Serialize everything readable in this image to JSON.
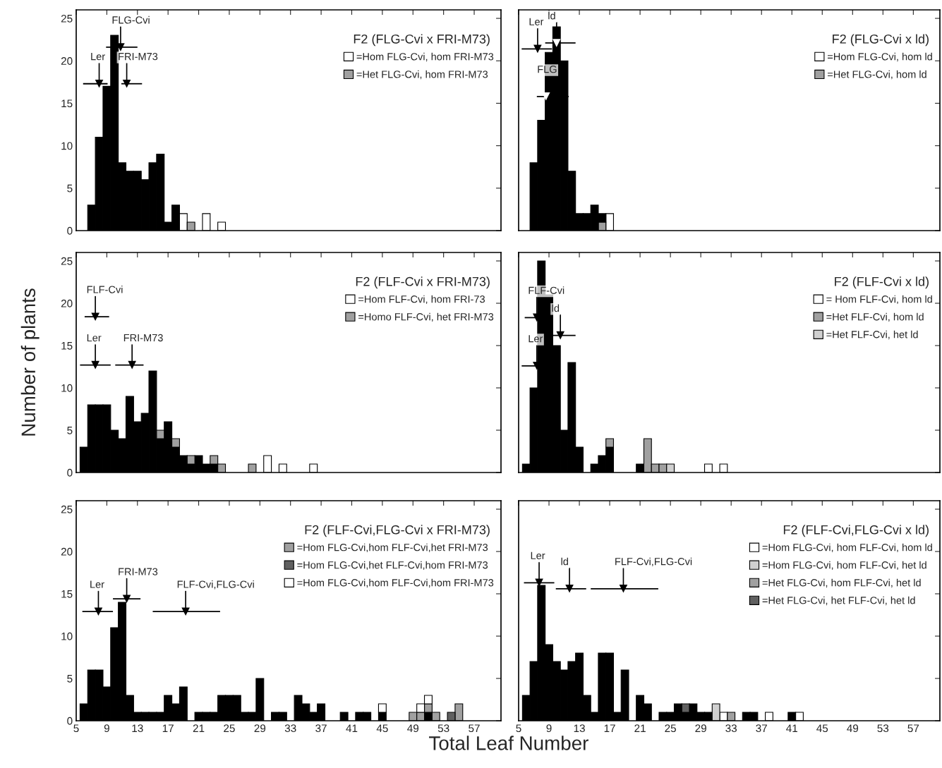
{
  "chart_data": [
    {
      "type": "bar",
      "title": "F2 (FLG-Cvi x FRI-M73)",
      "stacked": true,
      "legend": "top right",
      "tick_labels": "y",
      "x": [
        7,
        8,
        9,
        10,
        11,
        12,
        13,
        14,
        15,
        16,
        17,
        18,
        19,
        20,
        21,
        22,
        23,
        24
      ],
      "xlim": [
        5,
        60.5
      ],
      "xticks": [
        5,
        9,
        13,
        17,
        21,
        25,
        29,
        33,
        37,
        41,
        45,
        49,
        53,
        57
      ],
      "ylim": [
        0,
        26
      ],
      "yticks": [
        0,
        5,
        10,
        15,
        20,
        25
      ],
      "series": [
        {
          "name": "=Hom FLG-Cvi, hom FRI-M73",
          "color": "#ffffff",
          "values": [
            null,
            null,
            null,
            null,
            null,
            null,
            null,
            null,
            null,
            null,
            null,
            null,
            2,
            null,
            null,
            2,
            null,
            1
          ]
        },
        {
          "name": "=Het FLG-Cvi, hom FRI-M73",
          "color": "#a0a0a0",
          "values": [
            null,
            null,
            null,
            null,
            null,
            null,
            null,
            null,
            null,
            null,
            null,
            null,
            null,
            1,
            null,
            null,
            null,
            null
          ]
        },
        {
          "color": "#000000",
          "values": [
            3,
            11,
            17,
            23,
            8,
            7,
            7,
            6,
            8,
            9,
            1,
            3,
            null,
            null,
            null,
            null,
            null,
            null
          ]
        },
        {
          "type": "line",
          "color": "#000000",
          "x": [
            5.9,
            9.1
          ],
          "values": [
            17.3,
            17.3
          ]
        },
        {
          "type": "line",
          "color": "#000000",
          "x": [
            10.9,
            13.6
          ],
          "values": [
            17.3,
            17.3
          ]
        },
        {
          "type": "line",
          "color": "#000000",
          "x": [
            8.9,
            13.0
          ],
          "values": [
            21.6,
            21.6
          ]
        },
        {
          "type": "scatter",
          "marker": "triangle",
          "color": "#000000",
          "x": [
            8,
            11.6,
            10.8
          ],
          "values": [
            17.3,
            17.3,
            21.6
          ]
        }
      ],
      "annotations": [
        {
          "text": "Ler",
          "x": 8,
          "y": 17.3
        },
        {
          "text": "FRI-M73",
          "x": 11.6,
          "y": 17.3
        },
        {
          "text": "FLG-Cvi",
          "x": 10.8,
          "y": 21.6
        }
      ]
    },
    {
      "type": "bar",
      "title": "F2 (FLG-Cvi x ld)",
      "stacked": true,
      "legend": "top right",
      "tick_labels": false,
      "x": [
        7,
        8,
        9,
        10,
        11,
        12,
        13,
        14,
        15,
        16,
        17
      ],
      "xlim": [
        5,
        60.5
      ],
      "xticks": [
        5,
        9,
        13,
        17,
        21,
        25,
        29,
        33,
        37,
        41,
        45,
        49,
        53,
        57
      ],
      "ylim": [
        0,
        26
      ],
      "yticks": [
        0,
        5,
        10,
        15,
        20,
        25
      ],
      "series": [
        {
          "name": "=Hom FLG-Cvi, hom ld",
          "color": "#ffffff",
          "values": [
            null,
            null,
            null,
            null,
            null,
            null,
            null,
            null,
            null,
            null,
            2
          ]
        },
        {
          "name": "=Het FLG-Cvi, hom ld",
          "color": "#a0a0a0",
          "values": [
            null,
            null,
            null,
            null,
            null,
            null,
            null,
            null,
            null,
            1,
            null
          ]
        },
        {
          "color": "#000000",
          "values": [
            8,
            13,
            21,
            24,
            20,
            7,
            2,
            2,
            3,
            1,
            null
          ]
        },
        {
          "type": "line",
          "color": "#000000",
          "x": [
            5.4,
            9.4
          ],
          "values": [
            21.4,
            21.4
          ]
        },
        {
          "type": "line",
          "color": "#000000",
          "x": [
            8.5,
            12.5
          ],
          "values": [
            22.1,
            22.1
          ]
        },
        {
          "type": "line",
          "color": "#000000",
          "x": [
            7.4,
            11.6
          ],
          "values": [
            15.8,
            15.8
          ]
        },
        {
          "type": "scatter",
          "marker": "triangle",
          "color": "#000000",
          "x": [
            7.5
          ],
          "values": [
            21.4
          ]
        },
        {
          "type": "scatter",
          "marker": "triangle",
          "color": "#ffffff",
          "x": [
            10.0,
            8.6
          ],
          "values": [
            22.1,
            15.8
          ]
        }
      ],
      "annotations": [
        {
          "text": "Ler",
          "x": 7.5,
          "y": 21.4
        },
        {
          "text": "ld",
          "x": 10.0,
          "y": 22.1
        },
        {
          "text": "FLG",
          "x": 8.6,
          "y": 15.8
        }
      ]
    },
    {
      "type": "bar",
      "title": "F2 (FLF-Cvi x FRI-M73)",
      "stacked": true,
      "legend": "top right",
      "tick_labels": "y",
      "ylabel": "Number of plants",
      "x": [
        6,
        7,
        8,
        9,
        10,
        11,
        12,
        13,
        14,
        15,
        16,
        17,
        18,
        19,
        20,
        21,
        22,
        23,
        24,
        25,
        26,
        27,
        28,
        29,
        30,
        31,
        32,
        33,
        34,
        35,
        36
      ],
      "xlim": [
        5,
        60.5
      ],
      "xticks": [
        5,
        9,
        13,
        17,
        21,
        25,
        29,
        33,
        37,
        41,
        45,
        49,
        53,
        57
      ],
      "ylim": [
        0,
        26
      ],
      "yticks": [
        0,
        5,
        10,
        15,
        20,
        25
      ],
      "series": [
        {
          "color": "#000000",
          "values": [
            3,
            8,
            8,
            8,
            5,
            4,
            9,
            6,
            7,
            12,
            4,
            6,
            3,
            2,
            1,
            2,
            1,
            1,
            null,
            null,
            null,
            null,
            null,
            null,
            null,
            null,
            null,
            null,
            null,
            null,
            null
          ]
        },
        {
          "name": "=Hom FLF-Cvi, hom FRI-73",
          "color": "#ffffff",
          "values": [
            null,
            null,
            null,
            null,
            null,
            null,
            null,
            null,
            null,
            null,
            null,
            null,
            null,
            null,
            null,
            null,
            null,
            null,
            null,
            null,
            null,
            null,
            null,
            null,
            2,
            null,
            1,
            null,
            null,
            null,
            1
          ]
        },
        {
          "name": "=Homo FLF-Cvi, het FRI-M73",
          "color": "#a0a0a0",
          "values": [
            null,
            null,
            null,
            null,
            null,
            null,
            null,
            null,
            null,
            null,
            1,
            null,
            1,
            null,
            1,
            null,
            null,
            1,
            1,
            null,
            null,
            null,
            1,
            null,
            null,
            null,
            null,
            null,
            null,
            null,
            null
          ]
        },
        {
          "type": "line",
          "color": "#000000",
          "x": [
            6.1,
            9.3
          ],
          "values": [
            18.4,
            18.4
          ]
        },
        {
          "type": "line",
          "color": "#000000",
          "x": [
            5.5,
            9.5
          ],
          "values": [
            12.7,
            12.7
          ]
        },
        {
          "type": "line",
          "color": "#000000",
          "x": [
            10.1,
            13.8
          ],
          "values": [
            12.7,
            12.7
          ]
        },
        {
          "type": "scatter",
          "marker": "triangle",
          "color": "#000000",
          "x": [
            7.5,
            7.5,
            12.3
          ],
          "values": [
            18.4,
            12.7,
            12.7
          ]
        }
      ],
      "annotations": [
        {
          "text": "FLF-Cvi",
          "x": 7.5,
          "y": 18.4
        },
        {
          "text": "Ler",
          "x": 7.5,
          "y": 12.7
        },
        {
          "text": "FRI-M73",
          "x": 12.3,
          "y": 12.7
        }
      ]
    },
    {
      "type": "bar",
      "title": "F2 (FLF-Cvi x ld)",
      "stacked": true,
      "legend": "top right",
      "tick_labels": false,
      "x": [
        6,
        7,
        8,
        9,
        10,
        11,
        12,
        13,
        14,
        15,
        16,
        17,
        18,
        19,
        20,
        21,
        22,
        23,
        24,
        25,
        26,
        27,
        28,
        29,
        30,
        31,
        32
      ],
      "xlim": [
        5,
        60.5
      ],
      "xticks": [
        5,
        9,
        13,
        17,
        21,
        25,
        29,
        33,
        37,
        41,
        45,
        49,
        53,
        57
      ],
      "ylim": [
        0,
        26
      ],
      "yticks": [
        0,
        5,
        10,
        15,
        20,
        25
      ],
      "series": [
        {
          "color": "#000000",
          "values": [
            1,
            10,
            25,
            21,
            15,
            5,
            13,
            3,
            null,
            1,
            2,
            3,
            null,
            null,
            null,
            1,
            null,
            null,
            null,
            null,
            null,
            null,
            null,
            null,
            null,
            null,
            null
          ]
        },
        {
          "name": "= Hom FLF-Cvi, hom ld",
          "color": "#ffffff",
          "values": [
            null,
            null,
            null,
            null,
            null,
            null,
            null,
            null,
            null,
            null,
            null,
            null,
            null,
            null,
            null,
            null,
            null,
            null,
            null,
            null,
            null,
            null,
            null,
            null,
            1,
            null,
            1
          ]
        },
        {
          "name": "=Het FLF-Cvi, hom ld",
          "color": "#a0a0a0",
          "values": [
            null,
            null,
            null,
            null,
            null,
            null,
            null,
            null,
            null,
            null,
            null,
            1,
            null,
            null,
            null,
            null,
            4,
            1,
            1,
            null,
            null,
            null,
            null,
            null,
            null,
            null,
            null
          ]
        },
        {
          "name": "=Het FLF-Cvi, het ld",
          "color": "#d0d0d0",
          "values": [
            null,
            null,
            null,
            null,
            null,
            null,
            null,
            null,
            null,
            null,
            null,
            null,
            null,
            null,
            null,
            null,
            null,
            null,
            null,
            1,
            null,
            null,
            null,
            null,
            null,
            null,
            null
          ]
        },
        {
          "type": "line",
          "color": "#000000",
          "x": [
            5.8,
            7.5
          ],
          "values": [
            18.3,
            18.3
          ]
        },
        {
          "type": "line",
          "color": "#000000",
          "x": [
            8.5,
            12.5
          ],
          "values": [
            16.2,
            16.2
          ]
        },
        {
          "type": "line",
          "color": "#000000",
          "x": [
            5.4,
            7.5
          ],
          "values": [
            12.6,
            12.6
          ]
        },
        {
          "type": "scatter",
          "marker": "triangle",
          "color": "#000000",
          "x": [
            7.4,
            10.5,
            7.4
          ],
          "values": [
            18.3,
            16.2,
            12.6
          ]
        }
      ],
      "annotations": [
        {
          "text": "FLF-Cvi",
          "x": 7.4,
          "y": 18.3
        },
        {
          "text": "ld",
          "x": 10.5,
          "y": 16.2
        },
        {
          "text": "Ler",
          "x": 7.4,
          "y": 12.6
        }
      ]
    },
    {
      "type": "bar",
      "title": "F2 (FLF-Cvi,FLG-Cvi x FRI-M73)",
      "stacked": true,
      "legend": "top right",
      "xlabel": "Total Leaf Number",
      "x": [
        6,
        7,
        8,
        9,
        10,
        11,
        12,
        13,
        14,
        15,
        16,
        17,
        18,
        19,
        20,
        21,
        22,
        23,
        24,
        25,
        26,
        27,
        28,
        29,
        30,
        31,
        32,
        33,
        34,
        35,
        36,
        37,
        38,
        39,
        40,
        41,
        42,
        43,
        44,
        45,
        46,
        47,
        48,
        49,
        50,
        51,
        52,
        53,
        54,
        55
      ],
      "xlim": [
        5,
        60.5
      ],
      "xticks": [
        5,
        9,
        13,
        17,
        21,
        25,
        29,
        33,
        37,
        41,
        45,
        49,
        53,
        57
      ],
      "ylim": [
        0,
        26
      ],
      "yticks": [
        0,
        5,
        10,
        15,
        20,
        25
      ],
      "series": [
        {
          "color": "#000000",
          "values": [
            2,
            6,
            6,
            4,
            11,
            14,
            3,
            1,
            1,
            1,
            1,
            3,
            2,
            4,
            null,
            1,
            1,
            1,
            3,
            3,
            3,
            1,
            1,
            5,
            null,
            1,
            1,
            null,
            3,
            2,
            1,
            2,
            null,
            null,
            1,
            null,
            1,
            1,
            null,
            1,
            null,
            null,
            null,
            null,
            null,
            1,
            null,
            null,
            null,
            null
          ]
        },
        {
          "name": "=Hom FLG-Cvi,hom FLF-Cvi,het FRI-M73",
          "color": "#a0a0a0",
          "values": [
            null,
            null,
            null,
            null,
            null,
            null,
            null,
            null,
            null,
            null,
            null,
            null,
            null,
            null,
            null,
            null,
            null,
            null,
            null,
            null,
            null,
            null,
            null,
            null,
            null,
            null,
            null,
            null,
            null,
            null,
            null,
            null,
            null,
            null,
            null,
            null,
            null,
            null,
            null,
            null,
            null,
            null,
            null,
            1,
            1,
            1,
            1,
            null,
            null,
            2
          ]
        },
        {
          "name": "=Hom FLG-Cvi,het FLF-Cvi,hom FRI-M73",
          "color": "#606060",
          "values": [
            null,
            null,
            null,
            null,
            null,
            null,
            null,
            null,
            null,
            null,
            null,
            null,
            null,
            null,
            null,
            null,
            null,
            null,
            null,
            null,
            null,
            null,
            null,
            null,
            null,
            null,
            null,
            null,
            null,
            null,
            null,
            null,
            null,
            null,
            null,
            null,
            null,
            null,
            null,
            null,
            null,
            null,
            null,
            null,
            null,
            null,
            null,
            null,
            1,
            null
          ]
        },
        {
          "name": "=Hom FLG-Cvi,hom FLF-Cvi,hom FRI-M73",
          "color": "#ffffff",
          "values": [
            null,
            null,
            null,
            null,
            null,
            null,
            null,
            null,
            null,
            null,
            null,
            null,
            null,
            null,
            null,
            null,
            null,
            null,
            null,
            null,
            null,
            null,
            null,
            null,
            null,
            null,
            null,
            null,
            null,
            null,
            null,
            null,
            null,
            null,
            null,
            null,
            null,
            null,
            null,
            1,
            null,
            null,
            null,
            null,
            1,
            1,
            null,
            null,
            null,
            null
          ]
        },
        {
          "type": "line",
          "color": "#000000",
          "x": [
            5.8,
            9.8
          ],
          "values": [
            12.9,
            12.9
          ]
        },
        {
          "type": "line",
          "color": "#000000",
          "x": [
            9.8,
            13.4
          ],
          "values": [
            14.4,
            14.4
          ]
        },
        {
          "type": "line",
          "color": "#000000",
          "x": [
            15.0,
            23.8
          ],
          "values": [
            12.9,
            12.9
          ]
        },
        {
          "type": "scatter",
          "marker": "triangle",
          "color": "#000000",
          "x": [
            7.9,
            11.6,
            19.3
          ],
          "values": [
            12.9,
            14.4,
            12.9
          ]
        }
      ],
      "annotations": [
        {
          "text": "Ler",
          "x": 7.9,
          "y": 12.9
        },
        {
          "text": "FRI-M73",
          "x": 11.6,
          "y": 14.4
        },
        {
          "text": "FLF-Cvi,FLG-Cvi",
          "x": 19.3,
          "y": 12.9
        }
      ]
    },
    {
      "type": "bar",
      "title": "F2 (FLF-Cvi,FLG-Cvi x ld)",
      "stacked": true,
      "legend": "top right",
      "tick_labels": "x",
      "x": [
        6,
        7,
        8,
        9,
        10,
        11,
        12,
        13,
        14,
        15,
        16,
        17,
        18,
        19,
        20,
        21,
        22,
        23,
        24,
        25,
        26,
        27,
        28,
        29,
        30,
        31,
        32,
        33,
        34,
        35,
        36,
        37,
        38,
        39,
        40,
        41,
        42
      ],
      "xlim": [
        5,
        60.5
      ],
      "xticks": [
        5,
        9,
        13,
        17,
        21,
        25,
        29,
        33,
        37,
        41,
        45,
        49,
        53,
        57
      ],
      "ylim": [
        0,
        26
      ],
      "yticks": [
        0,
        5,
        10,
        15,
        20,
        25
      ],
      "series": [
        {
          "color": "#000000",
          "values": [
            3,
            7,
            16,
            9,
            7,
            6,
            7,
            8,
            3,
            1,
            8,
            8,
            1,
            6,
            null,
            3,
            2,
            null,
            1,
            1,
            2,
            1,
            2,
            1,
            1,
            null,
            null,
            null,
            null,
            1,
            1,
            null,
            null,
            null,
            null,
            1,
            null
          ]
        },
        {
          "name": "=Hom FLG-Cvi, hom FLF-Cvi, hom ld",
          "color": "#ffffff",
          "values": [
            null,
            null,
            null,
            null,
            null,
            null,
            null,
            null,
            null,
            null,
            null,
            null,
            null,
            null,
            null,
            null,
            null,
            null,
            null,
            null,
            null,
            null,
            null,
            null,
            null,
            null,
            1,
            null,
            null,
            null,
            null,
            null,
            1,
            null,
            null,
            null,
            1
          ]
        },
        {
          "name": "=Hom FLG-Cvi, hom FLF-Cvi, het ld",
          "color": "#d0d0d0",
          "values": [
            null,
            null,
            null,
            null,
            null,
            null,
            null,
            null,
            null,
            null,
            null,
            null,
            null,
            null,
            null,
            null,
            null,
            null,
            null,
            null,
            null,
            null,
            null,
            null,
            null,
            2,
            null,
            null,
            null,
            null,
            null,
            null,
            null,
            null,
            null,
            null,
            null
          ]
        },
        {
          "name": "=Het FLG-Cvi, hom FLF-Cvi, het ld",
          "color": "#a0a0a0",
          "values": [
            null,
            null,
            null,
            null,
            null,
            null,
            null,
            null,
            null,
            null,
            null,
            null,
            null,
            null,
            null,
            null,
            null,
            null,
            null,
            null,
            null,
            null,
            null,
            null,
            null,
            null,
            null,
            1,
            null,
            null,
            null,
            null,
            null,
            null,
            null,
            null,
            null
          ]
        },
        {
          "name": "=Het FLG-Cvi, het FLF-Cvi, het ld",
          "color": "#606060",
          "values": [
            null,
            null,
            null,
            null,
            null,
            null,
            null,
            null,
            null,
            null,
            null,
            null,
            null,
            null,
            null,
            null,
            null,
            null,
            null,
            null,
            null,
            1,
            null,
            null,
            null,
            null,
            null,
            null,
            null,
            null,
            null,
            null,
            null,
            null,
            null,
            null,
            null
          ]
        },
        {
          "type": "line",
          "color": "#000000",
          "x": [
            5.7,
            9.7
          ],
          "values": [
            16.3,
            16.3
          ]
        },
        {
          "type": "line",
          "color": "#000000",
          "x": [
            9.9,
            13.9
          ],
          "values": [
            15.6,
            15.6
          ]
        },
        {
          "type": "line",
          "color": "#000000",
          "x": [
            14.5,
            23.4
          ],
          "values": [
            15.6,
            15.6
          ]
        },
        {
          "type": "scatter",
          "marker": "triangle",
          "color": "#000000",
          "x": [
            7.7,
            11.7,
            18.8
          ],
          "values": [
            16.3,
            15.6,
            15.6
          ]
        }
      ],
      "annotations": [
        {
          "text": "Ler",
          "x": 7.7,
          "y": 16.3
        },
        {
          "text": "ld",
          "x": 11.7,
          "y": 15.6
        },
        {
          "text": "FLF-Cvi,FLG-Cvi",
          "x": 18.8,
          "y": 15.6
        }
      ]
    }
  ]
}
